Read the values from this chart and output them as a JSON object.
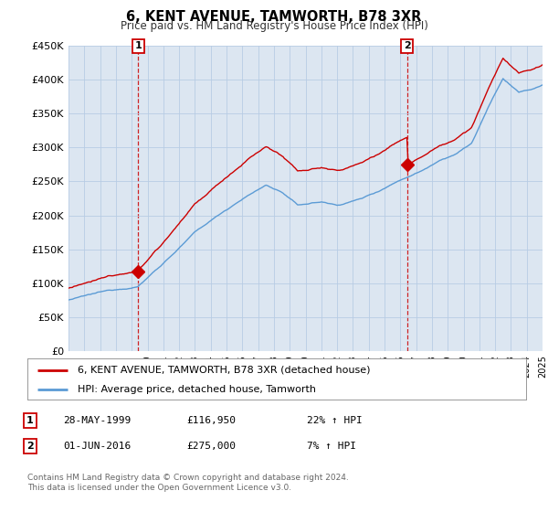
{
  "title": "6, KENT AVENUE, TAMWORTH, B78 3XR",
  "subtitle": "Price paid vs. HM Land Registry's House Price Index (HPI)",
  "legend_line1": "6, KENT AVENUE, TAMWORTH, B78 3XR (detached house)",
  "legend_line2": "HPI: Average price, detached house, Tamworth",
  "table_rows": [
    {
      "num": "1",
      "date": "28-MAY-1999",
      "price": "£116,950",
      "change": "22% ↑ HPI"
    },
    {
      "num": "2",
      "date": "01-JUN-2016",
      "price": "£275,000",
      "change": "7% ↑ HPI"
    }
  ],
  "footnote1": "Contains HM Land Registry data © Crown copyright and database right 2024.",
  "footnote2": "This data is licensed under the Open Government Licence v3.0.",
  "ylim": [
    0,
    450000
  ],
  "yticks": [
    0,
    50000,
    100000,
    150000,
    200000,
    250000,
    300000,
    350000,
    400000,
    450000
  ],
  "ytick_labels": [
    "£0",
    "£50K",
    "£100K",
    "£150K",
    "£200K",
    "£250K",
    "£300K",
    "£350K",
    "£400K",
    "£450K"
  ],
  "sale1_year": 1999.41,
  "sale1_price": 116950,
  "sale2_year": 2016.42,
  "sale2_price": 275000,
  "hpi_color": "#5b9bd5",
  "sale_color": "#cc0000",
  "bg_color": "#ffffff",
  "chart_bg": "#dce6f1",
  "grid_color": "#b8cce4",
  "xtick_start": 1995,
  "xtick_end": 2025
}
